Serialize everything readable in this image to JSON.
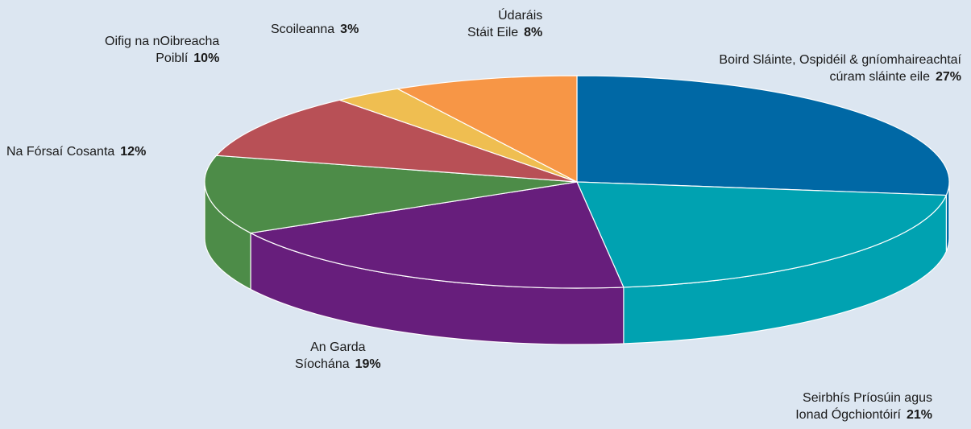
{
  "chart_data": {
    "type": "pie",
    "style": "3d",
    "slices": [
      {
        "lines": [
          "Boird Sláinte, Ospidéil & gníomhaireachtaí",
          "cúram sláinte eile"
        ],
        "value": 27,
        "value_label": "27%",
        "color": "#0068a5",
        "side": "#00527f"
      },
      {
        "lines": [
          "Seirbhís Príosúin agus",
          "Ionad Ógchiontóirí"
        ],
        "value": 21,
        "value_label": "21%",
        "color": "#00a2b1",
        "side": "#008d9a"
      },
      {
        "lines": [
          "An Garda",
          "Síochána"
        ],
        "value": 19,
        "value_label": "19%",
        "color": "#671e7c",
        "side": "#551866"
      },
      {
        "lines": [
          "Na Fórsaí Cosanta"
        ],
        "value": 12,
        "value_label": "12%",
        "color": "#4d8c48",
        "side": "#3e733a"
      },
      {
        "lines": [
          "Oifig na nOibreacha",
          "Poiblí"
        ],
        "value": 10,
        "value_label": "10%",
        "color": "#b85056",
        "side": "#983f45"
      },
      {
        "lines": [
          "Scoileanna"
        ],
        "value": 3,
        "value_label": "3%",
        "color": "#efbe51",
        "side": "#d4a53d"
      },
      {
        "lines": [
          "Údaráis",
          "Stáit Eile"
        ],
        "value": 8,
        "value_label": "8%",
        "color": "#f79646",
        "side": "#d67c33"
      }
    ],
    "background": "#dce6f1",
    "legend": "none"
  }
}
